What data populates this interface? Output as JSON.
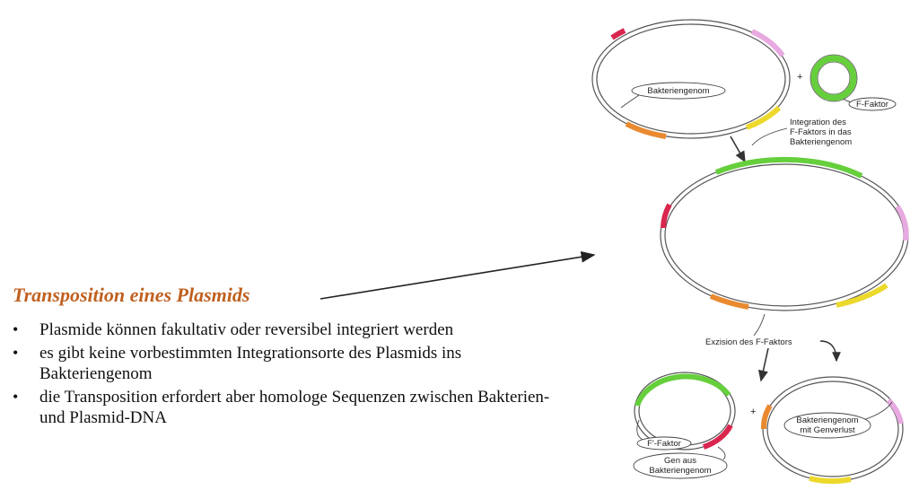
{
  "title": "Transposition eines Plasmids",
  "bullets": [
    "Plasmide können fakultativ oder reversibel integriert werden",
    "es gibt keine vorbestimmten Integrationsorte des Plasmids ins Bakteriengenom",
    "die Transposition erfordert aber homologe Sequenzen zwischen Bakterien- und Plasmid-DNA"
  ],
  "diagram": {
    "labels": {
      "bakteriengenom": "Bakteriengenom",
      "plus_top": "+",
      "f_faktor": "F-Faktor",
      "integration": [
        "Integration des",
        "F-Faktors in das",
        "Bakteriengenom"
      ],
      "exzision": "Exzision des F-Faktors",
      "f_strich_faktor": "F'-Faktor",
      "gen_aus": [
        "Gen aus",
        "Bakteriengenom"
      ],
      "plus_bottom": "+",
      "genverlust": [
        "Bakteriengenom",
        "mit Genverlust"
      ]
    },
    "colors": {
      "red": "#d9264e",
      "pink": "#e7a9e0",
      "yellow": "#ecd92b",
      "orange": "#e98a30",
      "green": "#66cf3c",
      "title": "#c0601f"
    }
  }
}
